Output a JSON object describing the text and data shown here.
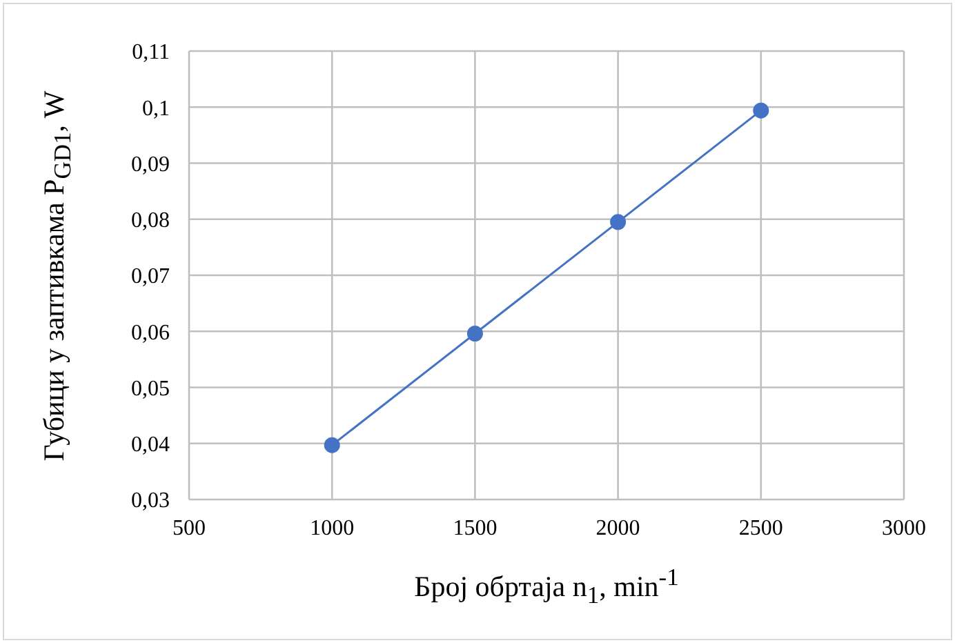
{
  "chart_data": {
    "type": "line",
    "xlabel": "Број обртаја n$_{1}$, min$^{-1}$",
    "ylabel": "Губици у заптивкама P$_{GD1}$, W",
    "x": [
      1000,
      1500,
      2000,
      2500
    ],
    "series": [
      {
        "color": "#4472c4",
        "values": [
          0.0397,
          0.0596,
          0.0795,
          0.0994
        ]
      }
    ],
    "xlim": [
      500,
      3000
    ],
    "xticks": [
      500,
      1000,
      1500,
      2000,
      2500,
      3000
    ],
    "ylim": [
      0.03,
      0.11
    ],
    "yticks": [
      {
        "value": 0.03,
        "label": "0,03"
      },
      {
        "value": 0.04,
        "label": "0,04"
      },
      {
        "value": 0.05,
        "label": "0,05"
      },
      {
        "value": 0.06,
        "label": "0,06"
      },
      {
        "value": 0.07,
        "label": "0,07"
      },
      {
        "value": 0.08,
        "label": "0,08"
      },
      {
        "value": 0.09,
        "label": "0,09"
      },
      {
        "value": 0.1,
        "label": "0,1"
      },
      {
        "value": 0.11,
        "label": "0,11"
      }
    ],
    "grid": true,
    "marker": "circle",
    "line_style": "solid"
  }
}
